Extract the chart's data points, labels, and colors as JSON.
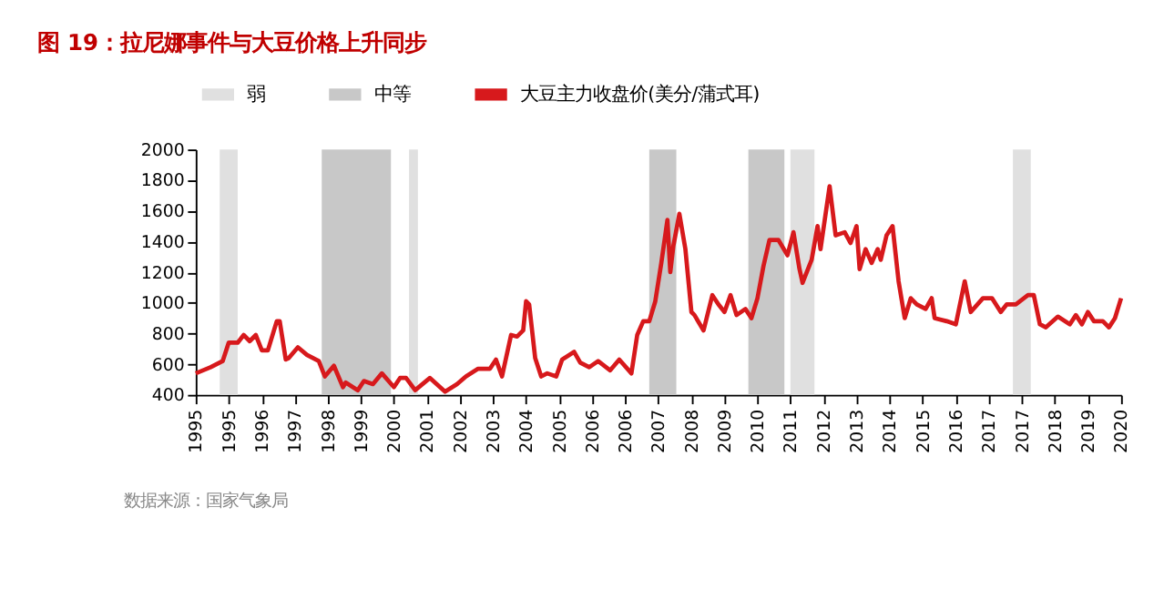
{
  "chart_data": {
    "type": "line",
    "title": "图 19：拉尼娜事件与大豆价格上升同步",
    "annotations": [
      "数据来源：国家气象局"
    ],
    "x": [
      "1995-01",
      "1995-06",
      "1995-10",
      "1995-12",
      "1996-03",
      "1996-05",
      "1996-07",
      "1996-09",
      "1996-11",
      "1997-01",
      "1997-04",
      "1997-05",
      "1997-07",
      "1997-08",
      "1997-11",
      "1998-02",
      "1998-06",
      "1998-08",
      "1998-11",
      "1999-02",
      "1999-03",
      "1999-07",
      "1999-09",
      "1999-12",
      "2000-03",
      "2000-07",
      "2000-09",
      "2000-11",
      "2001-02",
      "2001-07",
      "2001-12",
      "2002-04",
      "2002-07",
      "2002-11",
      "2003-03",
      "2003-05",
      "2003-07",
      "2003-10",
      "2003-12",
      "2004-02",
      "2004-03",
      "2004-04",
      "2004-06",
      "2004-08",
      "2004-10",
      "2005-01",
      "2005-03",
      "2005-07",
      "2005-09",
      "2005-12",
      "2006-03",
      "2006-07",
      "2006-10",
      "2007-02",
      "2007-04",
      "2007-06",
      "2007-08",
      "2007-10",
      "2007-12",
      "2008-02",
      "2008-03",
      "2008-04",
      "2008-06",
      "2008-08",
      "2008-10",
      "2008-11",
      "2009-02",
      "2009-05",
      "2009-07",
      "2009-09",
      "2009-11",
      "2010-01",
      "2010-04",
      "2010-06",
      "2010-08",
      "2010-10",
      "2010-12",
      "2011-03",
      "2011-06",
      "2011-08",
      "2011-10",
      "2011-11",
      "2012-02",
      "2012-04",
      "2012-05",
      "2012-08",
      "2012-10",
      "2013-01",
      "2013-03",
      "2013-05",
      "2013-06",
      "2013-08",
      "2013-10",
      "2013-12",
      "2014-01",
      "2014-03",
      "2014-05",
      "2014-07",
      "2014-09",
      "2014-11",
      "2015-01",
      "2015-04",
      "2015-06",
      "2015-07",
      "2015-11",
      "2016-02",
      "2016-05",
      "2016-07",
      "2016-11",
      "2017-02",
      "2017-05",
      "2017-07",
      "2017-10",
      "2018-02",
      "2018-04",
      "2018-06",
      "2018-08",
      "2018-12",
      "2019-04",
      "2019-06",
      "2019-08",
      "2019-10",
      "2019-12",
      "2020-03",
      "2020-05",
      "2020-07",
      "2020-09"
    ],
    "series": [
      {
        "name": "大豆主力收盘价(美分/蒲式耳)",
        "color": "#d7191c",
        "values": [
          540,
          580,
          620,
          740,
          740,
          790,
          750,
          790,
          690,
          690,
          880,
          880,
          630,
          640,
          710,
          660,
          620,
          520,
          590,
          450,
          480,
          430,
          490,
          470,
          540,
          450,
          510,
          510,
          430,
          510,
          420,
          470,
          520,
          570,
          570,
          630,
          520,
          790,
          780,
          820,
          1010,
          990,
          640,
          520,
          540,
          520,
          630,
          680,
          610,
          580,
          620,
          560,
          630,
          540,
          790,
          880,
          880,
          1010,
          1260,
          1540,
          1200,
          1370,
          1580,
          1350,
          940,
          920,
          820,
          1050,
          990,
          940,
          1050,
          920,
          960,
          900,
          1030,
          1240,
          1410,
          1410,
          1310,
          1460,
          1220,
          1130,
          1280,
          1500,
          1350,
          1760,
          1440,
          1460,
          1390,
          1500,
          1220,
          1350,
          1260,
          1350,
          1280,
          1440,
          1500,
          1140,
          900,
          1030,
          990,
          960,
          1030,
          900,
          880,
          860,
          1140,
          940,
          1030,
          1030,
          940,
          990,
          990,
          1050,
          1050,
          860,
          840,
          910,
          860,
          920,
          860,
          940,
          880,
          880,
          840,
          900,
          1030
        ]
      }
    ],
    "bands": [
      {
        "axis": "x",
        "from": "1995-09",
        "to": "1996-03",
        "label": "弱",
        "color": "#e0e0e0"
      },
      {
        "axis": "x",
        "from": "1998-07",
        "to": "2000-06",
        "label": "中等",
        "color": "#c8c8c8"
      },
      {
        "axis": "x",
        "from": "2000-12",
        "to": "2001-03",
        "color": "#e0e0e0"
      },
      {
        "axis": "x",
        "from": "2007-08",
        "to": "2008-05",
        "color": "#c8c8c8"
      },
      {
        "axis": "x",
        "from": "2010-05",
        "to": "2011-05",
        "color": "#c8c8c8"
      },
      {
        "axis": "x",
        "from": "2011-07",
        "to": "2012-03",
        "color": "#e0e0e0"
      },
      {
        "axis": "x",
        "from": "2017-09",
        "to": "2018-03",
        "color": "#e0e0e0"
      }
    ],
    "xlim": [
      "1995-01",
      "2020-09"
    ],
    "xticks": [
      {
        "value": "1995-01",
        "label": "1995"
      },
      {
        "value": "1995-12",
        "label": "1995"
      },
      {
        "value": "1996-11",
        "label": "1996"
      },
      {
        "value": "1997-10",
        "label": "1997"
      },
      {
        "value": "1998-09",
        "label": "1998"
      },
      {
        "value": "1999-08",
        "label": "1999"
      },
      {
        "value": "2000-07",
        "label": "2000"
      },
      {
        "value": "2001-06",
        "label": "2001"
      },
      {
        "value": "2002-05",
        "label": "2002"
      },
      {
        "value": "2003-04",
        "label": "2003"
      },
      {
        "value": "2004-03",
        "label": "2004"
      },
      {
        "value": "2005-02",
        "label": "2005"
      },
      {
        "value": "2006-01",
        "label": "2006"
      },
      {
        "value": "2006-12",
        "label": "2006"
      },
      {
        "value": "2007-11",
        "label": "2007"
      },
      {
        "value": "2008-10",
        "label": "2008"
      },
      {
        "value": "2009-09",
        "label": "2009"
      },
      {
        "value": "2010-08",
        "label": "2010"
      },
      {
        "value": "2011-07",
        "label": "2011"
      },
      {
        "value": "2012-06",
        "label": "2012"
      },
      {
        "value": "2013-05",
        "label": "2013"
      },
      {
        "value": "2014-04",
        "label": "2014"
      },
      {
        "value": "2015-03",
        "label": "2015"
      },
      {
        "value": "2016-02",
        "label": "2016"
      },
      {
        "value": "2017-01",
        "label": "2017"
      },
      {
        "value": "2017-12",
        "label": "2017"
      },
      {
        "value": "2018-11",
        "label": "2018"
      },
      {
        "value": "2019-10",
        "label": "2019"
      },
      {
        "value": "2020-09",
        "label": "2020"
      }
    ],
    "ylim": [
      400,
      2000
    ],
    "yticks": [
      400,
      600,
      800,
      1000,
      1200,
      1400,
      1600,
      1800,
      2000
    ],
    "grid": false,
    "legend": "top",
    "marker": "none",
    "line_style": "solid"
  }
}
